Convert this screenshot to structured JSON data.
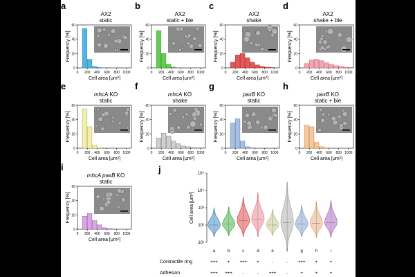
{
  "panels": [
    {
      "id": "a",
      "title_html": "AX2",
      "subtitle": "static",
      "italic": "",
      "color": "#55b4e0",
      "edge": "#2a7fb0",
      "values": [
        0,
        55,
        12,
        2,
        0.5,
        0,
        0,
        0,
        0,
        0,
        0
      ],
      "row": 0,
      "col": 0
    },
    {
      "id": "b",
      "title_html": "AX2",
      "subtitle": "static + ble",
      "italic": "",
      "color": "#66cc55",
      "edge": "#2f8f2a",
      "values": [
        0,
        52,
        20,
        5,
        1,
        0,
        0,
        0,
        0,
        0,
        0
      ],
      "row": 0,
      "col": 1
    },
    {
      "id": "c",
      "title_html": "AX2",
      "subtitle": "shake",
      "italic": "",
      "color": "#e05a5a",
      "edge": "#b02a2a",
      "values": [
        0,
        8,
        18,
        20,
        14,
        8,
        4,
        2,
        1,
        0.5,
        0
      ],
      "row": 0,
      "col": 2
    },
    {
      "id": "d",
      "title_html": "AX2",
      "subtitle": "shake + ble",
      "italic": "",
      "color": "#f0a8b0",
      "edge": "#c06070",
      "values": [
        0,
        6,
        11,
        12,
        10,
        7,
        5,
        3,
        2,
        1,
        0.5
      ],
      "row": 0,
      "col": 3
    },
    {
      "id": "e",
      "title_html": "KO",
      "subtitle": "static",
      "italic": "mhcA",
      "color": "#f2f0b0",
      "edge": "#a8a050",
      "values": [
        0,
        55,
        30,
        4,
        0.5,
        0,
        0,
        0,
        0,
        0,
        0
      ],
      "row": 1,
      "col": 0
    },
    {
      "id": "f",
      "title_html": "KO",
      "subtitle": "shake",
      "italic": "mhcA",
      "color": "#cfcfcf",
      "edge": "#777777",
      "values": [
        0,
        14,
        21,
        17,
        10,
        6,
        3,
        2,
        1,
        0.5,
        0.5
      ],
      "row": 1,
      "col": 1
    },
    {
      "id": "g",
      "title_html": "KO",
      "subtitle": "static",
      "italic": "paxB",
      "color": "#a8bfe0",
      "edge": "#5a7ab0",
      "values": [
        0,
        35,
        41,
        10,
        2,
        0.5,
        0,
        0,
        0,
        0,
        0
      ],
      "row": 1,
      "col": 2
    },
    {
      "id": "h",
      "title_html": "KO",
      "subtitle": "static + ble",
      "italic": "paxB",
      "color": "#f5c8a0",
      "edge": "#c08040",
      "values": [
        0,
        32,
        30,
        8,
        2,
        0.5,
        0,
        0,
        0,
        0,
        0
      ],
      "row": 1,
      "col": 3
    },
    {
      "id": "i",
      "title_html": "KO",
      "subtitle": "static",
      "italic": "mhcA paxB",
      "color": "#d8a8e0",
      "edge": "#9a50b0",
      "values": [
        0,
        18,
        22,
        12,
        6,
        2,
        1,
        0.5,
        0,
        0,
        0
      ],
      "row": 2,
      "col": 0
    }
  ],
  "axis": {
    "ylabel": "Frequency [%]",
    "xlabel": "Cell area [μm²]",
    "yticks": [
      "0",
      "20",
      "40",
      "60"
    ],
    "xticks": [
      "0",
      "200",
      "400",
      "600",
      "800",
      "1000"
    ]
  },
  "violin": {
    "label": "j",
    "ylabel": "Cell area [μm²]",
    "yticks": [
      "10¹",
      "10²",
      "10³",
      "10⁴",
      "10⁵"
    ],
    "categories": [
      "a",
      "b",
      "c",
      "d",
      "e",
      "f",
      "g",
      "h",
      "i"
    ],
    "medians_log": [
      2.0,
      2.05,
      2.25,
      2.35,
      2.0,
      2.15,
      2.05,
      2.1,
      2.15
    ],
    "spread": [
      0.55,
      0.55,
      0.75,
      0.85,
      0.5,
      1.3,
      0.6,
      0.7,
      0.7
    ],
    "colors": [
      "#4a8ec8",
      "#4cb848",
      "#e04a4a",
      "#f08a96",
      "#c8c890",
      "#b0b0b0",
      "#8aa4d0",
      "#e8b080",
      "#b070c8"
    ],
    "contractile_label": "Contractile ring",
    "adhesion_label": "Adhesion",
    "contractile": [
      "+++",
      "+",
      "+++",
      "+",
      "-",
      "-",
      "+++",
      "+",
      "+"
    ],
    "adhesion": [
      "+++",
      "+++",
      "-",
      "-",
      "+++",
      "-",
      "+",
      "+",
      "+"
    ]
  }
}
